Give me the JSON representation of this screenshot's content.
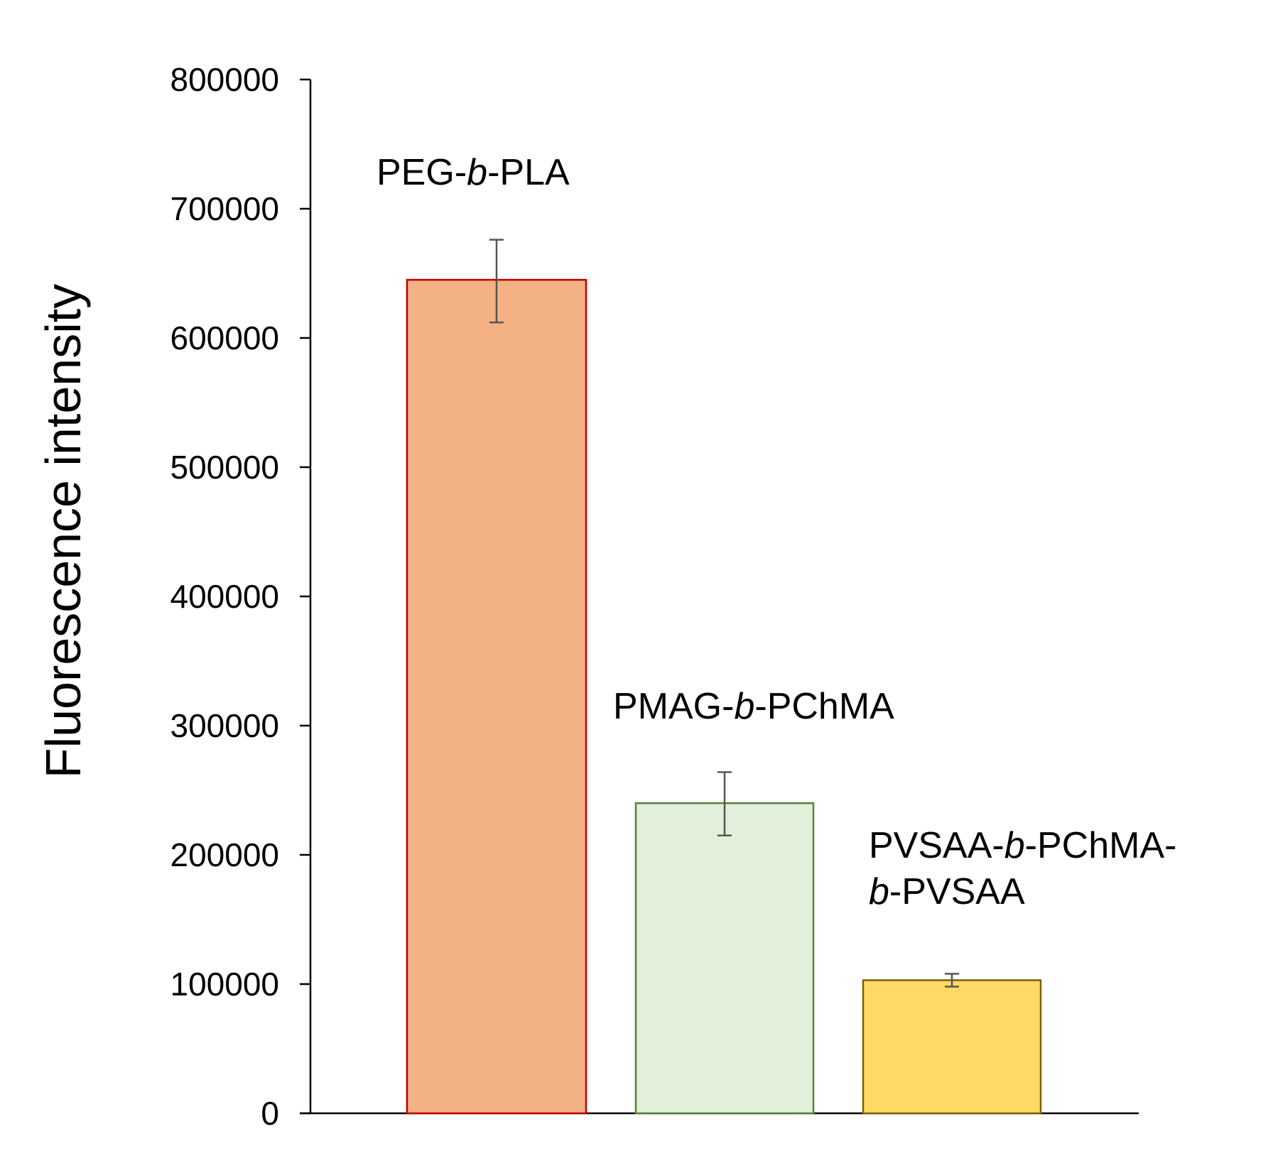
{
  "chart_data": {
    "type": "bar",
    "title": "",
    "xlabel": "",
    "ylabel": "Fluorescence intensity",
    "ylim": [
      0,
      800000
    ],
    "yticks": [
      0,
      100000,
      200000,
      300000,
      400000,
      500000,
      600000,
      700000,
      800000
    ],
    "ytick_labels": [
      "0",
      "100000",
      "200000",
      "300000",
      "400000",
      "500000",
      "600000",
      "700000",
      "800000"
    ],
    "grid": false,
    "legend": "none",
    "bars": [
      {
        "label_parts": [
          "PEG-",
          "b",
          "-PLA"
        ],
        "value": 645000,
        "error_low": 612000,
        "error_high": 676000,
        "fill": "#F4B183",
        "stroke": "#C00000"
      },
      {
        "label_parts": [
          "PMAG-",
          "b",
          "-PChMA"
        ],
        "value": 240000,
        "error_low": 215000,
        "error_high": 264000,
        "fill": "#E2EFDA",
        "stroke": "#548235"
      },
      {
        "label_lines": [
          [
            "PVSAA-",
            "b",
            "-PChMA-"
          ],
          [
            "b",
            "-PVSAA"
          ]
        ],
        "value": 103000,
        "error_low": 98000,
        "error_high": 108000,
        "fill": "#FFD966",
        "stroke": "#7F6000"
      }
    ]
  }
}
